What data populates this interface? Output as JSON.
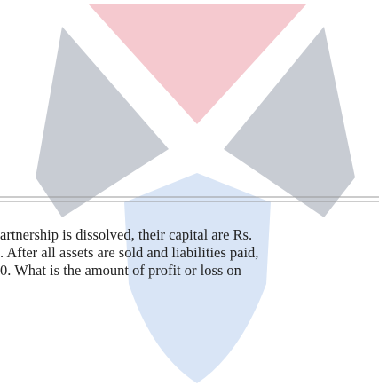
{
  "body": {
    "lines": [
      "artnership is dissolved, their capital are Rs.",
      ". After all assets are sold and liabilities paid,",
      "0. What is the amount of profit or loss on"
    ]
  }
}
